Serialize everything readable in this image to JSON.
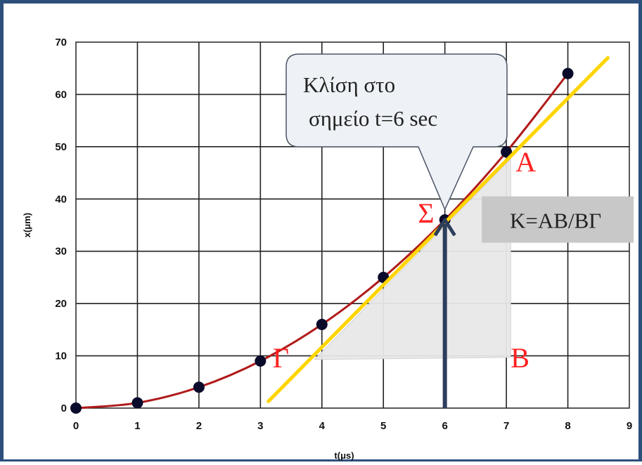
{
  "chart_data": {
    "type": "line",
    "xlabel": "t(μs)",
    "ylabel": "x(μm)",
    "xlim": [
      0,
      9
    ],
    "ylim": [
      0,
      70
    ],
    "grid": true,
    "x_ticks": [
      "0",
      "1",
      "2",
      "3",
      "4",
      "5",
      "6",
      "7",
      "8",
      "9"
    ],
    "y_ticks": [
      "0",
      "10",
      "20",
      "30",
      "40",
      "50",
      "60",
      "70"
    ],
    "series": [
      {
        "x": [
          0,
          1,
          2,
          3,
          4,
          5,
          6,
          7,
          8
        ],
        "values": [
          0,
          1,
          4,
          9,
          16,
          25,
          36,
          49,
          64
        ],
        "color": "#b01a1a",
        "marker_color": "#0a0a2a"
      }
    ],
    "tangent_line": {
      "x": [
        3.13,
        8.65
      ],
      "y": [
        1.3,
        67
      ],
      "color": "#ffd400"
    },
    "tangent_point": {
      "x": 6,
      "y": 36
    },
    "slope_triangle": {
      "vertices": [
        [
          3.88,
          9.3
        ],
        [
          7.07,
          9.7
        ],
        [
          7.07,
          47.7
        ]
      ],
      "fill": "#e8e8e8"
    },
    "points": {
      "A": {
        "label": "A"
      },
      "B": {
        "label": "B"
      },
      "Gamma": {
        "label": "Γ"
      },
      "Sigma": {
        "label": "Σ"
      }
    },
    "callout": {
      "line1": "Κλίση στο",
      "line2": "σημείο t=6 sec"
    },
    "formula": "K=AB/BΓ"
  }
}
